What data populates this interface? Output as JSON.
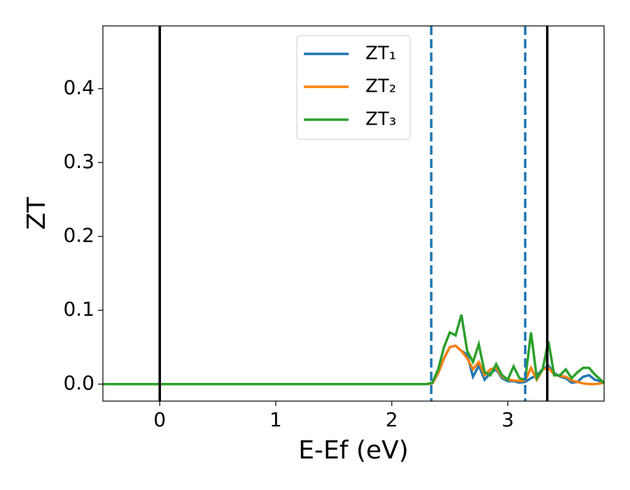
{
  "chart_data": {
    "type": "line",
    "xlabel": "E-Ef (eV)",
    "ylabel": "ZT",
    "x": [
      -0.49,
      2.3,
      2.35,
      2.4,
      2.45,
      2.5,
      2.55,
      2.6,
      2.65,
      2.7,
      2.75,
      2.8,
      2.85,
      2.9,
      2.95,
      3.0,
      3.05,
      3.1,
      3.15,
      3.2,
      3.25,
      3.3,
      3.35,
      3.4,
      3.45,
      3.5,
      3.55,
      3.6,
      3.65,
      3.7,
      3.75,
      3.8,
      3.83
    ],
    "series": [
      {
        "name": "ZT₁",
        "color": "#1f77b4",
        "values": [
          0,
          0,
          0.001,
          0.015,
          0.035,
          0.05,
          0.052,
          0.045,
          0.04,
          0.01,
          0.025,
          0.006,
          0.015,
          0.02,
          0.008,
          0.004,
          0.004,
          0.002,
          0.003,
          0.008,
          0.012,
          0.02,
          0.025,
          0.015,
          0.01,
          0.008,
          0.002,
          0.003,
          0.01,
          0.012,
          0.006,
          0.004,
          0.003
        ]
      },
      {
        "name": "ZT₂",
        "color": "#ff7f0e",
        "values": [
          0,
          0,
          0.001,
          0.015,
          0.035,
          0.05,
          0.052,
          0.045,
          0.035,
          0.02,
          0.03,
          0.012,
          0.02,
          0.022,
          0.01,
          0.006,
          0.005,
          0.004,
          0.005,
          0.022,
          0.006,
          0.02,
          0.022,
          0.013,
          0.011,
          0.01,
          0.005,
          0.003,
          0.001,
          0,
          0,
          0.001,
          0.002
        ]
      },
      {
        "name": "ZT₃",
        "color": "#2ca02c",
        "values": [
          0,
          0,
          0.002,
          0.02,
          0.05,
          0.07,
          0.066,
          0.094,
          0.045,
          0.03,
          0.054,
          0.016,
          0.012,
          0.027,
          0.012,
          0.006,
          0.024,
          0.008,
          0.006,
          0.07,
          0.008,
          0.02,
          0.058,
          0.012,
          0.012,
          0.02,
          0.008,
          0.016,
          0.022,
          0.022,
          0.013,
          0.006,
          0.001
        ]
      }
    ],
    "vlines": [
      {
        "x": 0,
        "color": "#000000",
        "linestyle": "solid"
      },
      {
        "x": 3.34,
        "color": "#000000",
        "linestyle": "solid"
      },
      {
        "x": 2.34,
        "color": "#1f77b4",
        "linestyle": "dashed"
      },
      {
        "x": 3.15,
        "color": "#1f77b4",
        "linestyle": "dashed"
      }
    ],
    "xlim": [
      -0.49,
      3.83
    ],
    "ylim": [
      -0.023,
      0.485
    ],
    "xticks": [
      0,
      1,
      2,
      3
    ],
    "yticks": [
      {
        "value": 0,
        "label": "0.0"
      },
      {
        "value": 0.1,
        "label": "0.1"
      },
      {
        "value": 0.2,
        "label": "0.2"
      },
      {
        "value": 0.3,
        "label": "0.3"
      },
      {
        "value": 0.4,
        "label": "0.4"
      }
    ],
    "legend": "upper center",
    "grid": false
  }
}
